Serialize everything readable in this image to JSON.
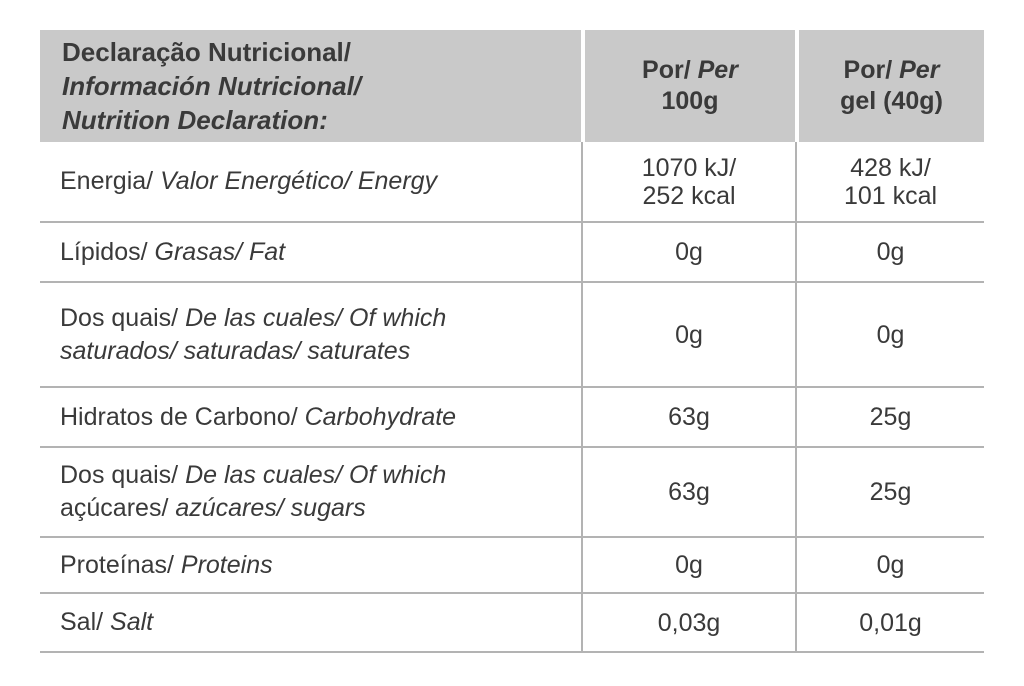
{
  "colors": {
    "header_background": "#c9c9c9",
    "grid_line": "#b3b3b3",
    "text": "#3a3a3a",
    "page_background": "#ffffff"
  },
  "table": {
    "header": {
      "title_lines": [
        [
          {
            "text": "Declaração Nutricional/",
            "italic": false
          }
        ],
        [
          {
            "text": "Información Nutricional/",
            "italic": true
          }
        ],
        [
          {
            "text": "Nutrition Declaration:",
            "italic": true
          }
        ]
      ],
      "columns": [
        {
          "name": "per-100g",
          "lines": [
            [
              {
                "text": "Por/ ",
                "italic": false
              },
              {
                "text": "Per",
                "italic": true
              }
            ],
            [
              {
                "text": "100g",
                "italic": false
              }
            ]
          ]
        },
        {
          "name": "per-gel-40g",
          "lines": [
            [
              {
                "text": "Por/ ",
                "italic": false
              },
              {
                "text": "Per",
                "italic": true
              }
            ],
            [
              {
                "text": "gel (40g)",
                "italic": false
              }
            ]
          ]
        }
      ]
    },
    "rows": [
      {
        "name": "energy",
        "label_lines": [
          [
            {
              "text": "Energia/ ",
              "italic": false
            },
            {
              "text": "Valor Energético/ Energy",
              "italic": true
            }
          ]
        ],
        "values": [
          [
            "1070 kJ/",
            "252 kcal"
          ],
          [
            "428 kJ/",
            "101 kcal"
          ]
        ]
      },
      {
        "name": "fat",
        "label_lines": [
          [
            {
              "text": "Lípidos/ ",
              "italic": false
            },
            {
              "text": "Grasas/ Fat",
              "italic": true
            }
          ]
        ],
        "values": [
          [
            "0g"
          ],
          [
            "0g"
          ]
        ]
      },
      {
        "name": "saturates",
        "label_lines": [
          [
            {
              "text": "Dos quais/ ",
              "italic": false
            },
            {
              "text": "De las cuales/ Of which",
              "italic": true
            }
          ],
          [
            {
              "text": "saturados/ saturadas/ saturates",
              "italic": true
            }
          ]
        ],
        "values": [
          [
            "0g"
          ],
          [
            "0g"
          ]
        ]
      },
      {
        "name": "carbohydrate",
        "label_lines": [
          [
            {
              "text": "Hidratos de Carbono/ ",
              "italic": false
            },
            {
              "text": "Carbohydrate",
              "italic": true
            }
          ]
        ],
        "values": [
          [
            "63g"
          ],
          [
            "25g"
          ]
        ]
      },
      {
        "name": "sugars",
        "label_lines": [
          [
            {
              "text": "Dos quais/ ",
              "italic": false
            },
            {
              "text": "De las cuales/ Of which",
              "italic": true
            }
          ],
          [
            {
              "text": "açúcares/ ",
              "italic": false
            },
            {
              "text": "azúcares/ sugars",
              "italic": true
            }
          ]
        ],
        "values": [
          [
            "63g"
          ],
          [
            "25g"
          ]
        ]
      },
      {
        "name": "proteins",
        "label_lines": [
          [
            {
              "text": "Proteínas/ ",
              "italic": false
            },
            {
              "text": "Proteins",
              "italic": true
            }
          ]
        ],
        "values": [
          [
            "0g"
          ],
          [
            "0g"
          ]
        ]
      },
      {
        "name": "salt",
        "label_lines": [
          [
            {
              "text": "Sal/ ",
              "italic": false
            },
            {
              "text": "Salt",
              "italic": true
            }
          ]
        ],
        "values": [
          [
            "0,03g"
          ],
          [
            "0,01g"
          ]
        ]
      }
    ]
  }
}
